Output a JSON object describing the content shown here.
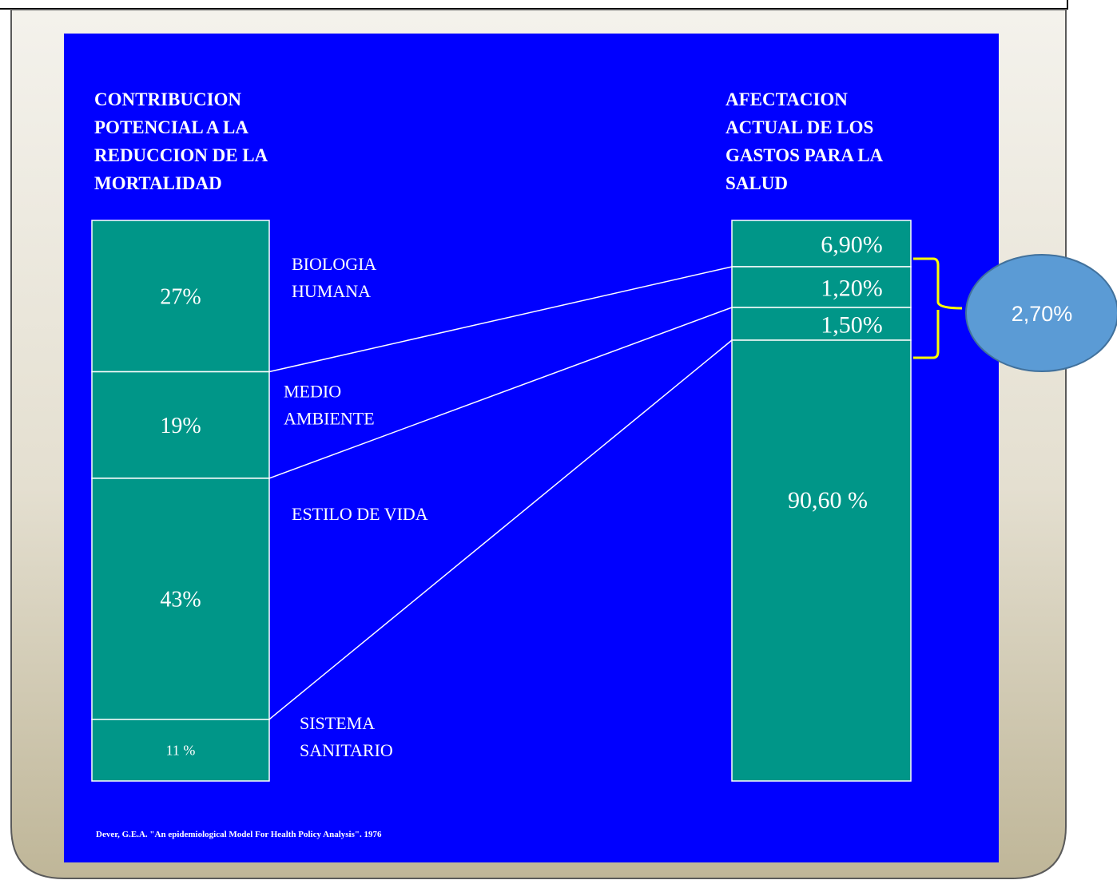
{
  "colors": {
    "panel_blue": "#0000ff",
    "bar_teal": "#009688",
    "frame_light": "#f1eee6",
    "frame_dark": "#c2b99e",
    "bracket_yellow": "#ffff00",
    "bubble_fill": "#5b9bd5",
    "bubble_stroke": "#41719c"
  },
  "chart_data": {
    "type": "table",
    "left_title": [
      "CONTRIBUCION",
      "POTENCIAL A LA",
      "REDUCCION DE LA",
      "MORTALIDAD"
    ],
    "right_title": [
      "AFECTACION",
      "ACTUAL DE LOS",
      "GASTOS PARA LA",
      "SALUD"
    ],
    "categories": [
      {
        "name": [
          "BIOLOGIA",
          "HUMANA"
        ],
        "mortality_pct": 27,
        "mortality_label": "27%",
        "spending_pct": 6.9,
        "spending_label": "6,90%"
      },
      {
        "name": [
          "MEDIO",
          "AMBIENTE"
        ],
        "mortality_pct": 19,
        "mortality_label": "19%",
        "spending_pct": 1.2,
        "spending_label": "1,20%"
      },
      {
        "name": [
          "ESTILO DE VIDA"
        ],
        "mortality_pct": 43,
        "mortality_label": "43%",
        "spending_pct": 1.5,
        "spending_label": "1,50%"
      },
      {
        "name": [
          "SISTEMA",
          "SANITARIO"
        ],
        "mortality_pct": 11,
        "mortality_label": "11 %",
        "spending_pct": 90.6,
        "spending_label": "90,60 %"
      }
    ],
    "bracket_label": "2,70%",
    "source": "Dever, G.E.A. \"An epidemiological Model For Health Policy Analysis\". 1976"
  }
}
